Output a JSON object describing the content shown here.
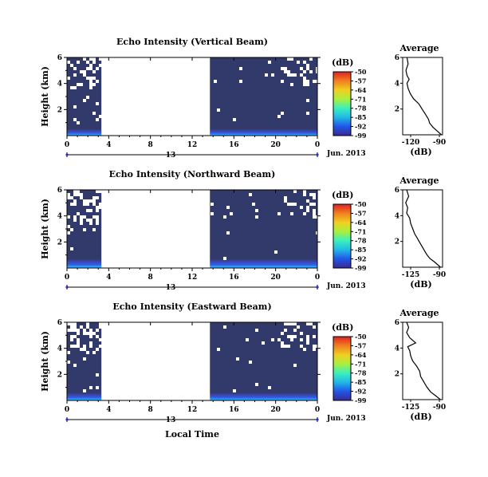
{
  "figure": {
    "xlabel": "Local Time",
    "xticks": [
      "0",
      "4",
      "8",
      "12",
      "16",
      "20",
      "0"
    ],
    "day_label": "13",
    "date_label": "Jun. 2013",
    "ylabel": "Height (km)",
    "yticks": [
      "6",
      "4",
      "2"
    ],
    "colorbar_unit": "(dB)",
    "colorbar_ticks": [
      "-50",
      "-57",
      "-64",
      "-71",
      "-78",
      "-85",
      "-92",
      "-99"
    ],
    "avg_title": "Average",
    "avg_xlabel": "(dB)",
    "avg_yticks": [
      "6",
      "4",
      "2"
    ],
    "colors": {
      "background_fill": "#323a6c",
      "colormap": [
        "#3b2a8c",
        "#2255e8",
        "#22b8e8",
        "#3af0c0",
        "#a8f040",
        "#f0d020",
        "#f08020",
        "#e02020"
      ]
    }
  },
  "chart_data": [
    {
      "type": "heatmap",
      "title": "Echo Intensity (Vertical Beam)",
      "xlim_hours": [
        0,
        24
      ],
      "ylim_km": [
        0,
        6
      ],
      "clim_db": [
        -99,
        -50
      ],
      "data_gaps_hours": [
        [
          3.3,
          13.7
        ]
      ],
      "strong_echo_layer_km": [
        0,
        0.5
      ],
      "average_profile": {
        "xticks": [
          "-120",
          "-90"
        ],
        "xlim_db": [
          -125,
          -88
        ],
        "height_km": [
          6.0,
          5.5,
          5.0,
          4.6,
          4.3,
          4.0,
          3.6,
          3.2,
          2.8,
          2.4,
          2.0,
          1.6,
          1.2,
          0.9,
          0.6,
          0.3,
          0.0
        ],
        "mean_db": [
          -121,
          -120,
          -122,
          -121,
          -119,
          -121,
          -120,
          -118,
          -115,
          -110,
          -107,
          -104,
          -101,
          -100,
          -97,
          -93,
          -89
        ]
      }
    },
    {
      "type": "heatmap",
      "title": "Echo Intensity (Northward Beam)",
      "xlim_hours": [
        0,
        24
      ],
      "ylim_km": [
        0,
        6
      ],
      "clim_db": [
        -99,
        -50
      ],
      "data_gaps_hours": [
        [
          3.3,
          13.7
        ]
      ],
      "strong_echo_layer_km": [
        0,
        0.7
      ],
      "average_profile": {
        "xticks": [
          "-125",
          "-90"
        ],
        "xlim_db": [
          -128,
          -88
        ],
        "height_km": [
          6.0,
          5.5,
          5.0,
          4.6,
          4.2,
          3.8,
          3.4,
          3.0,
          2.6,
          2.2,
          1.8,
          1.4,
          1.0,
          0.7,
          0.4,
          0.0
        ],
        "mean_db": [
          -124,
          -122,
          -125,
          -123,
          -124,
          -121,
          -120,
          -118,
          -116,
          -113,
          -110,
          -107,
          -104,
          -101,
          -96,
          -90
        ]
      }
    },
    {
      "type": "heatmap",
      "title": "Echo Intensity (Eastward Beam)",
      "xlim_hours": [
        0,
        24
      ],
      "ylim_km": [
        0,
        6
      ],
      "clim_db": [
        -99,
        -50
      ],
      "data_gaps_hours": [
        [
          3.3,
          13.7
        ]
      ],
      "strong_echo_layer_km": [
        0,
        0.6
      ],
      "average_profile": {
        "xticks": [
          "-125",
          "-90"
        ],
        "xlim_db": [
          -128,
          -88
        ],
        "height_km": [
          6.0,
          5.6,
          5.2,
          4.8,
          4.4,
          4.1,
          3.8,
          3.4,
          3.0,
          2.6,
          2.2,
          1.8,
          1.4,
          1.0,
          0.6,
          0.3,
          0.0
        ],
        "mean_db": [
          -124,
          -122,
          -124,
          -121,
          -115,
          -123,
          -121,
          -120,
          -118,
          -114,
          -111,
          -110,
          -107,
          -104,
          -100,
          -95,
          -90
        ]
      }
    }
  ]
}
